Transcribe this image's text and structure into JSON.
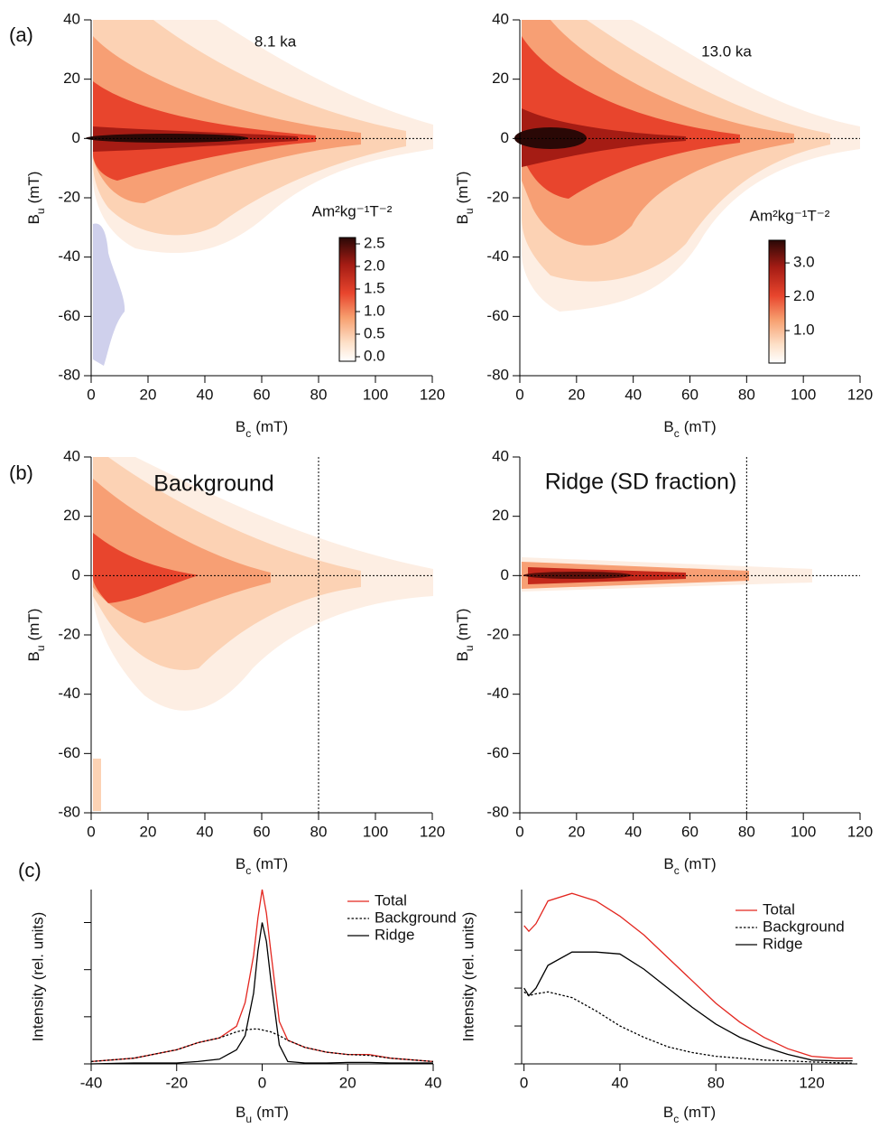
{
  "panel_labels": [
    "(a)",
    "(b)",
    "(c)"
  ],
  "chart_data": [
    {
      "type": "forc",
      "annotation": "8.1 ka",
      "xlabel": {
        "symbol": "B",
        "sub": "c",
        "unit": "(mT)"
      },
      "ylabel": {
        "symbol": "B",
        "sub": "u",
        "unit": "(mT)"
      },
      "xlim": [
        0,
        120
      ],
      "ylim": [
        -80,
        40
      ],
      "xticks": [
        0,
        20,
        40,
        60,
        80,
        100,
        120
      ],
      "yticks": [
        -80,
        -60,
        -40,
        -20,
        0,
        20,
        40
      ],
      "hline": 0,
      "colorbar": {
        "label": "Am²kg⁻¹T⁻²",
        "lim": [
          -0.1,
          2.64
        ],
        "ticks": [
          {
            "value": 0,
            "label": "0.0"
          },
          0.5,
          {
            "value": 1,
            "label": "1.0"
          },
          1.5,
          {
            "value": 2,
            "label": "2.0"
          },
          2.5
        ]
      }
    },
    {
      "type": "forc",
      "annotation": "13.0 ka",
      "xlabel": {
        "symbol": "B",
        "sub": "c",
        "unit": "(mT)"
      },
      "ylabel": {
        "symbol": "B",
        "sub": "u",
        "unit": "(mT)"
      },
      "xlim": [
        0,
        120
      ],
      "ylim": [
        -80,
        40
      ],
      "xticks": [
        0,
        20,
        40,
        60,
        80,
        100,
        120
      ],
      "yticks": [
        -80,
        -60,
        -40,
        -20,
        0,
        20,
        40
      ],
      "hline": 0,
      "colorbar": {
        "label": "Am²kg⁻¹T⁻²",
        "lim": [
          0.04,
          3.67
        ],
        "ticks": [
          {
            "value": 1,
            "label": "1.0"
          },
          {
            "value": 2,
            "label": "2.0"
          },
          {
            "value": 3,
            "label": "3.0"
          }
        ]
      }
    },
    {
      "type": "forc",
      "title": "Background",
      "xlabel": {
        "symbol": "B",
        "sub": "c",
        "unit": "(mT)"
      },
      "ylabel": {
        "symbol": "B",
        "sub": "u",
        "unit": "(mT)"
      },
      "xlim": [
        0,
        120
      ],
      "ylim": [
        -80,
        40
      ],
      "xticks": [
        0,
        20,
        40,
        60,
        80,
        100,
        120
      ],
      "yticks": [
        -80,
        -60,
        -40,
        -20,
        0,
        20,
        40
      ],
      "hline": 0,
      "vline": 80
    },
    {
      "type": "forc",
      "title": "Ridge (SD fraction)",
      "xlabel": {
        "symbol": "B",
        "sub": "c",
        "unit": "(mT)"
      },
      "ylabel": {
        "symbol": "B",
        "sub": "u",
        "unit": "(mT)"
      },
      "xlim": [
        0,
        120
      ],
      "ylim": [
        -80,
        40
      ],
      "xticks": [
        0,
        20,
        40,
        60,
        80,
        100,
        120
      ],
      "yticks": [
        -80,
        -60,
        -40,
        -20,
        0,
        20,
        40
      ],
      "hline": 0,
      "vline": 80
    },
    {
      "type": "line",
      "xlabel": {
        "symbol": "B",
        "sub": "u",
        "unit": "(mT)"
      },
      "ylabel": "Intensity (rel. units)",
      "xlim": [
        -40,
        40
      ],
      "ylim": [
        0,
        3.7
      ],
      "xticks": [
        -40,
        -20,
        0,
        20,
        40
      ],
      "yticks": [
        0,
        1,
        2,
        3
      ],
      "ytick_labels": false,
      "legend": "upper right",
      "x": [
        -40,
        -30,
        -20,
        -15,
        -10,
        -6,
        -4,
        -2,
        -1,
        0,
        1,
        2,
        4,
        6,
        10,
        15,
        20,
        25,
        30,
        40
      ],
      "series": [
        {
          "name": "Total",
          "color": "#e3261f",
          "style": "solid",
          "values": [
            0.05,
            0.12,
            0.3,
            0.45,
            0.55,
            0.8,
            1.3,
            2.3,
            3.1,
            3.7,
            3.2,
            2.4,
            0.9,
            0.5,
            0.35,
            0.25,
            0.2,
            0.2,
            0.12,
            0.05
          ]
        },
        {
          "name": "Background",
          "color": "#000000",
          "style": "dotted",
          "values": [
            0.05,
            0.12,
            0.3,
            0.45,
            0.55,
            0.68,
            0.72,
            0.74,
            0.74,
            0.72,
            0.7,
            0.68,
            0.6,
            0.5,
            0.35,
            0.25,
            0.2,
            0.18,
            0.12,
            0.05
          ]
        },
        {
          "name": "Ridge",
          "color": "#000000",
          "style": "solid",
          "values": [
            0,
            0.02,
            0.02,
            0.05,
            0.1,
            0.3,
            0.6,
            1.5,
            2.4,
            3.0,
            2.6,
            1.8,
            0.4,
            0.05,
            0.02,
            0.02,
            0.03,
            0.03,
            0.02,
            0.02
          ]
        }
      ]
    },
    {
      "type": "line",
      "xlabel": {
        "symbol": "B",
        "sub": "c",
        "unit": "(mT)"
      },
      "ylabel": "Intensity (rel. units)",
      "xlim": [
        -1,
        139
      ],
      "ylim": [
        0,
        4.6
      ],
      "xticks": [
        0,
        40,
        80,
        120
      ],
      "yticks": [
        0,
        1,
        2,
        3,
        4
      ],
      "ytick_labels": false,
      "legend": "upper right",
      "x": [
        0,
        2,
        5,
        10,
        20,
        30,
        40,
        50,
        60,
        70,
        80,
        90,
        100,
        110,
        120,
        130,
        137
      ],
      "series": [
        {
          "name": "Total",
          "color": "#e3261f",
          "style": "solid",
          "values": [
            3.65,
            3.5,
            3.7,
            4.3,
            4.5,
            4.3,
            3.9,
            3.4,
            2.8,
            2.2,
            1.6,
            1.1,
            0.7,
            0.4,
            0.2,
            0.15,
            0.15
          ]
        },
        {
          "name": "Background",
          "color": "#000000",
          "style": "dotted",
          "values": [
            1.9,
            1.8,
            1.85,
            1.9,
            1.75,
            1.4,
            1.0,
            0.7,
            0.45,
            0.3,
            0.2,
            0.15,
            0.1,
            0.08,
            0.05,
            0.03,
            0.02
          ]
        },
        {
          "name": "Ridge",
          "color": "#000000",
          "style": "solid",
          "values": [
            2.0,
            1.8,
            2.0,
            2.6,
            2.95,
            2.95,
            2.9,
            2.5,
            2.0,
            1.5,
            1.05,
            0.7,
            0.45,
            0.25,
            0.1,
            0.08,
            0.08
          ]
        }
      ]
    }
  ]
}
